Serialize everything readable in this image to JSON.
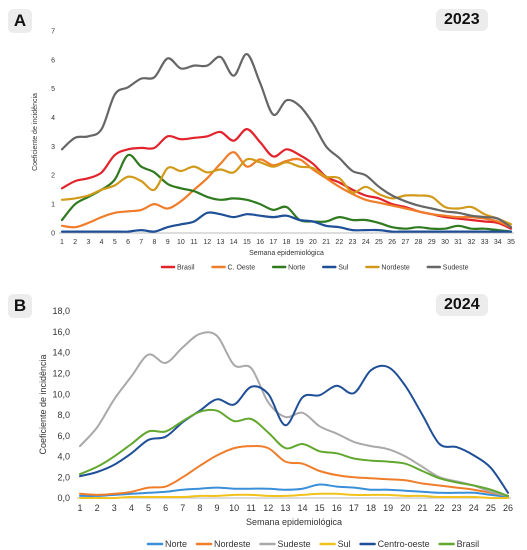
{
  "panels": {
    "a": {
      "badge": "A",
      "year": "2023"
    },
    "b": {
      "badge": "B",
      "year": "2024"
    }
  },
  "chart_data": [
    {
      "type": "line",
      "title": "",
      "xlabel": "Semana epidemiológica",
      "ylabel": "Coeficiente de incidência",
      "x": [
        1,
        2,
        3,
        4,
        5,
        6,
        7,
        8,
        9,
        10,
        11,
        12,
        13,
        14,
        15,
        16,
        17,
        18,
        19,
        20,
        21,
        22,
        23,
        24,
        25,
        26,
        27,
        28,
        29,
        30,
        31,
        32,
        33,
        34,
        35
      ],
      "ylim": [
        0,
        7
      ],
      "yticks": [
        "0",
        "1",
        "2",
        "3",
        "4",
        "5",
        "6",
        "7"
      ],
      "grid": false,
      "legend": "bottom",
      "series": [
        {
          "name": "Brasil",
          "color": "#e3222b",
          "values": [
            1.55,
            1.8,
            1.9,
            2.1,
            2.7,
            2.9,
            2.95,
            2.95,
            3.35,
            3.25,
            3.3,
            3.35,
            3.5,
            3.2,
            3.6,
            3.15,
            2.65,
            2.9,
            2.7,
            2.4,
            1.95,
            1.75,
            1.5,
            1.3,
            1.2,
            1.0,
            0.9,
            0.75,
            0.65,
            0.55,
            0.5,
            0.45,
            0.4,
            0.35,
            0.15
          ]
        },
        {
          "name": "C. Oeste",
          "color": "#ef7d2a",
          "values": [
            0.25,
            0.2,
            0.35,
            0.55,
            0.7,
            0.75,
            0.8,
            1.0,
            0.85,
            1.1,
            1.5,
            1.9,
            2.4,
            2.8,
            2.3,
            2.55,
            2.35,
            2.5,
            2.55,
            2.2,
            1.9,
            1.6,
            1.35,
            1.15,
            1.05,
            0.95,
            0.85,
            0.75,
            0.65,
            0.6,
            0.55,
            0.55,
            0.5,
            0.4,
            0.2
          ]
        },
        {
          "name": "Norte",
          "color": "#2f7a1f",
          "values": [
            0.45,
            1.0,
            1.25,
            1.5,
            1.85,
            2.7,
            2.3,
            2.1,
            1.7,
            1.55,
            1.45,
            1.25,
            1.15,
            1.2,
            1.15,
            1.0,
            0.8,
            0.9,
            0.45,
            0.4,
            0.4,
            0.55,
            0.45,
            0.45,
            0.35,
            0.2,
            0.15,
            0.2,
            0.15,
            0.15,
            0.25,
            0.15,
            0.15,
            0.1,
            0.05
          ]
        },
        {
          "name": "Sul",
          "color": "#1f4f96",
          "values": [
            0.05,
            0.05,
            0.05,
            0.05,
            0.05,
            0.05,
            0.1,
            0.05,
            0.2,
            0.3,
            0.4,
            0.7,
            0.65,
            0.55,
            0.65,
            0.6,
            0.55,
            0.6,
            0.45,
            0.4,
            0.25,
            0.2,
            0.1,
            0.1,
            0.1,
            0.05,
            0.05,
            0.05,
            0.05,
            0.05,
            0.05,
            0.05,
            0.05,
            0.05,
            0.05
          ]
        },
        {
          "name": "Nordeste",
          "color": "#d19a1a",
          "values": [
            1.15,
            1.2,
            1.3,
            1.5,
            1.65,
            1.95,
            1.8,
            1.5,
            2.25,
            2.15,
            2.3,
            2.1,
            2.2,
            2.1,
            2.55,
            2.45,
            2.3,
            2.45,
            2.3,
            2.25,
            1.95,
            1.9,
            1.4,
            1.6,
            1.35,
            1.2,
            1.3,
            1.3,
            1.25,
            0.9,
            0.85,
            0.9,
            0.65,
            0.5,
            0.3
          ]
        },
        {
          "name": "Sudeste",
          "color": "#666666",
          "values": [
            2.9,
            3.3,
            3.35,
            3.6,
            4.8,
            5.05,
            5.35,
            5.4,
            6.05,
            5.7,
            5.8,
            5.8,
            6.1,
            5.45,
            6.2,
            5.2,
            4.1,
            4.6,
            4.4,
            3.8,
            3.0,
            2.6,
            2.15,
            2.0,
            1.6,
            1.3,
            1.1,
            0.95,
            0.85,
            0.75,
            0.7,
            0.6,
            0.55,
            0.5,
            0.2
          ]
        }
      ]
    },
    {
      "type": "line",
      "title": "",
      "xlabel": "Semana epidemiológica",
      "ylabel": "Coeficiente de incidência",
      "x": [
        1,
        2,
        3,
        4,
        5,
        6,
        7,
        8,
        9,
        10,
        11,
        12,
        13,
        14,
        15,
        16,
        17,
        18,
        19,
        20,
        21,
        22,
        23,
        24,
        25,
        26
      ],
      "ylim": [
        0,
        18
      ],
      "yticks": [
        "0,0",
        "2,0",
        "4,0",
        "6,0",
        "8,0",
        "10,0",
        "12,0",
        "14,0",
        "16,0",
        "18,0"
      ],
      "grid": false,
      "legend": "bottom",
      "series": [
        {
          "name": "Norte",
          "color": "#3a8fd9",
          "values": [
            0.2,
            0.2,
            0.3,
            0.4,
            0.5,
            0.6,
            0.8,
            0.9,
            1.0,
            0.9,
            0.9,
            0.9,
            0.8,
            0.9,
            1.3,
            1.1,
            1.0,
            0.8,
            0.8,
            0.7,
            0.6,
            0.5,
            0.5,
            0.5,
            0.3,
            0.1
          ]
        },
        {
          "name": "Nordeste",
          "color": "#ef7d2a",
          "values": [
            0.4,
            0.3,
            0.4,
            0.6,
            1.0,
            1.1,
            2.0,
            3.1,
            4.1,
            4.8,
            5.0,
            4.8,
            3.5,
            3.3,
            2.6,
            2.2,
            2.0,
            1.9,
            1.8,
            1.7,
            1.4,
            1.2,
            1.0,
            0.8,
            0.5,
            0.2
          ]
        },
        {
          "name": "Sudeste",
          "color": "#a9a9a9",
          "values": [
            5.0,
            6.8,
            9.5,
            11.7,
            13.8,
            13.0,
            14.5,
            15.8,
            15.6,
            12.8,
            12.5,
            9.2,
            7.8,
            8.2,
            6.9,
            6.2,
            5.4,
            5.0,
            4.7,
            4.0,
            3.0,
            2.0,
            1.6,
            1.2,
            0.6,
            0.2
          ]
        },
        {
          "name": "Sul",
          "color": "#f2c21c",
          "values": [
            0.0,
            0.0,
            0.0,
            0.1,
            0.1,
            0.1,
            0.1,
            0.2,
            0.2,
            0.3,
            0.3,
            0.2,
            0.2,
            0.3,
            0.4,
            0.4,
            0.3,
            0.3,
            0.3,
            0.2,
            0.2,
            0.1,
            0.1,
            0.1,
            0.0,
            0.0
          ]
        },
        {
          "name": "Centro-oeste",
          "color": "#1f4f96",
          "values": [
            2.1,
            2.5,
            3.2,
            4.3,
            5.6,
            5.9,
            7.3,
            8.4,
            9.5,
            9.0,
            10.7,
            10.0,
            7.0,
            9.7,
            9.9,
            10.8,
            10.1,
            12.3,
            12.6,
            10.8,
            8.0,
            5.2,
            4.9,
            4.1,
            2.9,
            0.5
          ]
        },
        {
          "name": "Brasil",
          "color": "#62a82f",
          "values": [
            2.3,
            3.0,
            4.0,
            5.2,
            6.4,
            6.4,
            7.4,
            8.3,
            8.4,
            7.4,
            7.6,
            6.3,
            4.8,
            5.2,
            4.5,
            4.3,
            3.8,
            3.6,
            3.5,
            3.3,
            2.6,
            1.9,
            1.5,
            1.2,
            0.8,
            0.2
          ]
        }
      ]
    }
  ]
}
